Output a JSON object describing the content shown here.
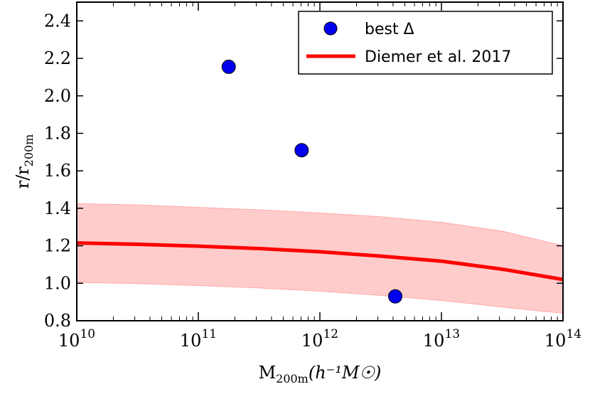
{
  "chart_data": {
    "type": "scatter",
    "xscale": "log",
    "xlim_exp": [
      10,
      14
    ],
    "ylim": [
      0.8,
      2.5
    ],
    "xlabel": {
      "base": "M",
      "sub": "200m",
      "units": "(h⁻¹M☉)"
    },
    "ylabel": {
      "base": "r/r",
      "sub": "200m"
    },
    "xticks": [
      {
        "base": "10",
        "exp": "10",
        "value": 10
      },
      {
        "base": "10",
        "exp": "11",
        "value": 11
      },
      {
        "base": "10",
        "exp": "12",
        "value": 12
      },
      {
        "base": "10",
        "exp": "13",
        "value": 13
      },
      {
        "base": "10",
        "exp": "14",
        "value": 14
      }
    ],
    "yticks": [
      "0.8",
      "1.0",
      "1.2",
      "1.4",
      "1.6",
      "1.8",
      "2.0",
      "2.2",
      "2.4"
    ],
    "series": [
      {
        "name": "best Δ",
        "kind": "scatter",
        "color": "#0000ee",
        "points": [
          {
            "logx": 11.25,
            "y": 2.155
          },
          {
            "logx": 11.85,
            "y": 1.71
          },
          {
            "logx": 12.62,
            "y": 0.93
          }
        ]
      },
      {
        "name": "Diemer et al. 2017",
        "kind": "line",
        "color": "#ff0000",
        "band_color": "#ffaaaa",
        "points": [
          {
            "logx": 10.0,
            "y": 1.215,
            "lo": 1.005,
            "hi": 1.425
          },
          {
            "logx": 10.5,
            "y": 1.208,
            "lo": 0.998,
            "hi": 1.418
          },
          {
            "logx": 11.0,
            "y": 1.198,
            "lo": 0.988,
            "hi": 1.405
          },
          {
            "logx": 11.5,
            "y": 1.185,
            "lo": 0.975,
            "hi": 1.392
          },
          {
            "logx": 12.0,
            "y": 1.168,
            "lo": 0.958,
            "hi": 1.375
          },
          {
            "logx": 12.5,
            "y": 1.145,
            "lo": 0.935,
            "hi": 1.355
          },
          {
            "logx": 13.0,
            "y": 1.118,
            "lo": 0.908,
            "hi": 1.325
          },
          {
            "logx": 13.5,
            "y": 1.075,
            "lo": 0.873,
            "hi": 1.278
          },
          {
            "logx": 14.0,
            "y": 1.02,
            "lo": 0.84,
            "hi": 1.2
          }
        ]
      }
    ],
    "legend": {
      "placement": "top-right",
      "entries": [
        {
          "label": "best Δ",
          "marker": "circle"
        },
        {
          "label": "Diemer et al. 2017",
          "marker": "line"
        }
      ]
    }
  }
}
